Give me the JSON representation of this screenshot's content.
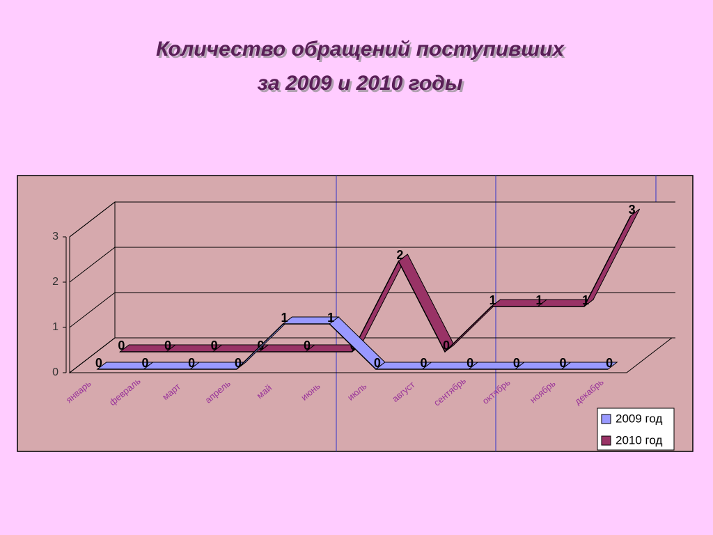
{
  "chart_data": {
    "type": "line3d",
    "title": [
      "Количество обращений поступивших",
      "за 2009 и 2010 годы"
    ],
    "categories": [
      "январь",
      "февраль",
      "март",
      "апрель",
      "май",
      "июнь",
      "июль",
      "август",
      "сентябрь",
      "октябрь",
      "ноябрь",
      "декабрь"
    ],
    "series": [
      {
        "name": "2009 год",
        "color": "#9999ff",
        "values": [
          0,
          0,
          0,
          0,
          1,
          1,
          0,
          0,
          0,
          0,
          0,
          0
        ]
      },
      {
        "name": "2010 год",
        "color": "#993366",
        "values": [
          0,
          0,
          0,
          0,
          0,
          0,
          2,
          0,
          1,
          1,
          1,
          3
        ]
      }
    ],
    "ylim": [
      0,
      3
    ],
    "yticks": [
      0,
      1,
      2,
      3
    ],
    "grid": true
  }
}
